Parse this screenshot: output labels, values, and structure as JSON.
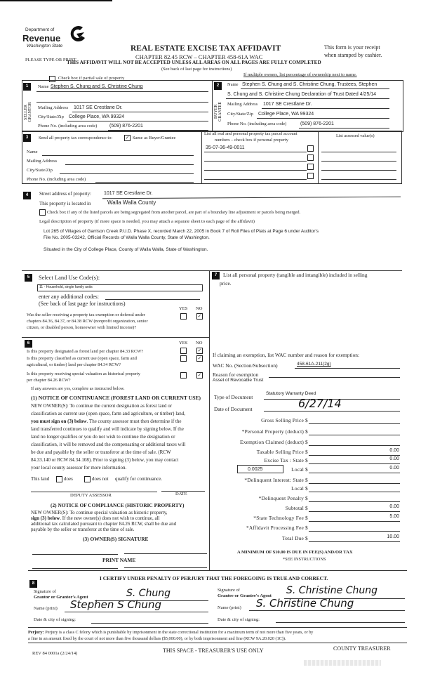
{
  "header": {
    "dept_of": "Department of",
    "revenue": "Revenue",
    "state": "Washington State",
    "title": "REAL ESTATE EXCISE TAX AFFIDAVIT",
    "chapters": "CHAPTER 82.45 RCW – CHAPTER 458-61A WAC",
    "receipt_1": "This form is your receipt",
    "receipt_2": "when stamped by cashier.",
    "type_or_print": "PLEASE TYPE OR PRINT",
    "warning": "THIS AFFIDAVIT WILL NOT BE ACCEPTED UNLESS ALL AREAS ON ALL PAGES ARE FULLY COMPLETED",
    "see_back": "(See back of last page for instructions)",
    "partial_sale": "Check box if partial sale of property",
    "partial_sale_checked": false,
    "multiple_owners": "If multiple owners, list percentage of ownership next to name."
  },
  "seller": {
    "num": "1",
    "side_1": "SELLER",
    "side_2": "GRANTOR",
    "name_label": "Name",
    "name": "Stephen S. Chung and S. Christine Chung",
    "mailing_label": "Mailing Address",
    "mailing": "1017 SE Crestlane Dr.",
    "city_label": "City/State/Zip",
    "city": "College Place, WA 99324",
    "phone_label": "Phone No. (including area code)",
    "phone": "(509) 876-2201"
  },
  "buyer": {
    "num": "2",
    "side_1": "BUYER",
    "side_2": "GRANTEE",
    "name_label": "Name",
    "name_1": "Stephen S. Chung and S. Christine Chung, Trustees, Stephen",
    "name_2": "S. Chung and S. Christine Chung Declaration of Trust Dated 4/25/14",
    "mailing_label": "Mailing Address",
    "mailing": "1017 SE Crestlane Dr.",
    "city_label": "City/State/Zip",
    "city": "College Place, WA 99324",
    "phone_label": "Phone No. (including area code)",
    "phone": "(509) 876-2201"
  },
  "correspondence": {
    "num": "3",
    "label": "Send all property tax correspondence to:",
    "same_as": "Same as Buyer/Grantee",
    "same_checked": true,
    "name_label": "Name",
    "mailing_label": "Mailing Address",
    "city_label": "City/State/Zip",
    "phone_label": "Phone No. (including area code)"
  },
  "parcels": {
    "header_1": "List all real and personal property tax parcel account",
    "header_2": "numbers – check box if personal property",
    "numbers": [
      "35-07-36-49-0011",
      "",
      "",
      ""
    ],
    "personal_checked": [
      false,
      false,
      false,
      false
    ],
    "assessed_header": "List assessed value(s)"
  },
  "property": {
    "num": "4",
    "street_label": "Street address of property:",
    "street": "1017 SE Crestlane Dr.",
    "located_label": "This property is located in",
    "county": "Walla Walla County",
    "segregated": "Check box if any of the listed parcels are being segregated from another parcel, are part of a boundary line adjustment or parcels being merged.",
    "segregated_checked": false,
    "legal_label": "Legal description of property (if more space is needed, you may attach a separate sheet to each page of the affidavit)",
    "legal_1": "Lot 265 of Villages of Garrison Creek P.U.D. Phase X, recorded March 22, 2005 in Book 7 of Roll Files of Plats at Page 6 under Auditor's",
    "legal_2": "File No. 2005-03242, Official Records of Walla Walla County, State of Washington.",
    "legal_3": "Situated in the City of College Place, County of Walla Walla, State of Washington."
  },
  "land_use": {
    "num": "5",
    "label": "Select Land Use Code(s):",
    "code": "11 - Household, single family units",
    "additional": "enter any additional codes:",
    "see_back": "(See back of last page for instructions)",
    "yes": "YES",
    "no": "NO",
    "question": [
      "Was the seller receiving a property tax exemption or deferral under",
      "chapters 84.36, 84.37, or 84.38 RCW (nonprofit organization, senior",
      "citizen, or disabled person, homeowner with limited income)?"
    ],
    "answer_yes": false,
    "answer_no": true
  },
  "section6": {
    "num": "6",
    "yes": "YES",
    "no": "NO",
    "q_forest": "Is this property designated as forest land per chapter 84.33 RCW?",
    "q_current_1": "Is this property classified as current use (open space, farm and",
    "q_current_2": "agricultural, or timber) land per chapter 84.34 RCW?",
    "q_hist_1": "Is this property receiving special valuation as historical property",
    "q_hist_2": "per chapter 84.26 RCW?",
    "answers": {
      "forest_yes": false,
      "forest_no": true,
      "current_yes": false,
      "current_no": true,
      "hist_yes": false,
      "hist_no": true
    },
    "if_yes": "If any answers are yes, complete as instructed below.",
    "notice1_title": "(1) NOTICE OF CONTINUANCE  (FOREST LAND OR CURRENT USE)",
    "notice1_1": "NEW OWNER(S): To continue the current designation as forest land or",
    "notice1_2": "classification as current use (open space, farm and agriculture, or timber) land,",
    "notice1_3a": "you must sign on (3) below",
    "notice1_3b": ". The county assessor must then determine if the",
    "notice1_4": "land transferred continues to qualify and will indicate by signing below. If the",
    "notice1_5": "land no longer qualifies or you do not wish to continue the designation or",
    "notice1_6": "classification, it will be removed and the compensating or additional taxes will",
    "notice1_7": "be due and payable by the seller or transferor at the time of sale. (RCW",
    "notice1_8": "84.33.140 or RCW 84.34.108). Prior to signing (3) below, you may contact",
    "notice1_9": "your local county assessor for more information.",
    "this_land": "This land",
    "does": "does",
    "does_not": "does not",
    "qualify": "qualify for continuance.",
    "does_checked": false,
    "does_not_checked": false,
    "deputy": "DEPUTY ASSESSOR",
    "date": "DATE",
    "notice2_title": "(2) NOTICE OF COMPLIANCE (HISTORIC PROPERTY)",
    "notice2_1": "NEW OWNER(S): To continue special valuation as historic property,",
    "notice2_2a": "sign (3) below",
    "notice2_2b": ". If the new owner(s) does not wish to continue, all",
    "notice2_3": "additional tax calculated pursuant to chapter 84.26 RCW, shall be due and",
    "notice2_4": "payable by the seller or transferor at the time of sale.",
    "owner_sig": "(3)  OWNER(S) SIGNATURE",
    "print_name": "PRINT NAME"
  },
  "section7": {
    "num": "7",
    "label_1": "List all  personal property (tangible and intangible) included in selling",
    "label_2": "price.",
    "exemption_intro": "If claiming an exemption, list WAC number and reason for exemption:",
    "wac_label": "WAC No. (Section/Subsection)",
    "wac": "458-61A-211(2g)",
    "reason_label": "Reason for exemption",
    "reason": "Asset of Revocable Trust",
    "doc_type_label": "Type of Document",
    "doc_type": "Statutory Warranty Deed",
    "doc_date_label": "Date of Document",
    "doc_date": "6/27/14",
    "local_rate": "0.0025",
    "amounts": [
      {
        "label": "Gross Selling Price",
        "value": ""
      },
      {
        "label": "*Personal Property (deduct)",
        "value": ""
      },
      {
        "label": "Exemption Claimed (deduct)",
        "value": ""
      },
      {
        "label": "Taxable Selling Price",
        "value": "0.00"
      },
      {
        "label": "Excise Tax : State",
        "value": "0.00"
      },
      {
        "label": "Local",
        "value": "0.00"
      },
      {
        "label": "*Delinquent Interest: State",
        "value": ""
      },
      {
        "label": "Local",
        "value": ""
      },
      {
        "label": "*Delinquent Penalty",
        "value": ""
      },
      {
        "label": "Subtotal",
        "value": "0.00"
      },
      {
        "label": "*State Technology Fee",
        "value": "5.00"
      },
      {
        "label": "*Affidavit Processing Fee",
        "value": ""
      },
      {
        "label": "Total Due",
        "value": "10.00"
      }
    ],
    "currency": "$",
    "minimum": "A MINIMUM OF $10.00 IS DUE IN FEE(S) AND/OR TAX",
    "see_instructions": "*SEE INSTRUCTIONS"
  },
  "section8": {
    "num": "8",
    "certify": "I CERTIFY UNDER PENALTY OF PERJURY THAT THE FOREGOING IS TRUE AND CORRECT.",
    "grantor_sig_1": "Signature of",
    "grantor_sig_2": "Grantor or Grantor's Agent",
    "grantor_signature": "S. Chung",
    "grantor_name_label": "Name (print)",
    "grantor_name": "Stephen S Chung",
    "grantor_date_label": "Date & city of signing:",
    "grantee_sig_1": "Signature of",
    "grantee_sig_2": "Grantee or Grantee's Agent",
    "grantee_signature": "S. Christine Chung",
    "grantee_name_label": "Name (print)",
    "grantee_name": "S. Christine Chung",
    "grantee_date_label": "Date & city of signing:"
  },
  "footer": {
    "perjury_label": "Perjury:",
    "perjury_1": " Perjury is a class C felony which is punishable by imprisonment in the state correctional institution for a maximum term of not more than five years, or by",
    "perjury_2": "a fine in an amount fixed by the court of not more than five thousand dollars ($5,000.00), or by both imprisonment and fine (RCW 9A.20.020 (1C)).",
    "form_number": "REV 84 0001a (2/24/14)",
    "treasurer_space": "THIS SPACE - TREASURER'S USE ONLY",
    "county_treasurer": "COUNTY TREASURER"
  }
}
